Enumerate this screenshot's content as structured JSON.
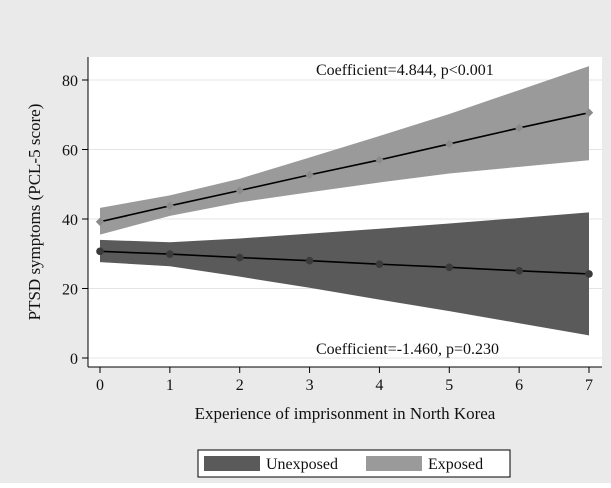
{
  "chart_data": {
    "type": "line",
    "title": "",
    "xlabel": "Experience of imprisonment in North Korea",
    "ylabel": "PTSD symptoms (PCL-5 score)",
    "xlim": [
      0,
      7
    ],
    "ylim": [
      0,
      80
    ],
    "x_ticks": [
      0,
      1,
      2,
      3,
      4,
      5,
      6,
      7
    ],
    "y_ticks": [
      0,
      20,
      40,
      60,
      80
    ],
    "grid": true,
    "legend_position": "bottom",
    "series": [
      {
        "name": "Unexposed",
        "x": [
          0,
          1,
          2,
          3,
          4,
          5,
          6,
          7
        ],
        "y": [
          30.7,
          29.9,
          28.9,
          28.0,
          27.0,
          26.1,
          25.1,
          24.2
        ],
        "ci_lower": [
          27.6,
          26.4,
          23.4,
          20.2,
          16.8,
          13.5,
          10.0,
          6.5
        ],
        "ci_upper": [
          34.0,
          33.3,
          34.4,
          35.8,
          37.2,
          38.7,
          40.3,
          41.9
        ],
        "band_color": "#5a5a5a",
        "marker_color": "#3a3a3a"
      },
      {
        "name": "Exposed",
        "x": [
          0,
          1,
          2,
          3,
          4,
          5,
          6,
          7
        ],
        "y": [
          39.2,
          43.8,
          48.2,
          52.7,
          57.0,
          61.6,
          66.2,
          70.6
        ],
        "ci_lower": [
          35.5,
          40.9,
          44.8,
          47.7,
          50.5,
          53.1,
          55.0,
          56.9
        ],
        "ci_upper": [
          43.2,
          46.8,
          51.6,
          57.7,
          63.9,
          70.2,
          77.1,
          84.0
        ],
        "band_color": "#9a9a9a",
        "marker_color": "#8a8a8a"
      }
    ],
    "annotations": [
      {
        "text": "Coefficient=4.844, p<0.001",
        "series": "Exposed"
      },
      {
        "text": "Coefficient=-1.460, p=0.230",
        "series": "Unexposed"
      }
    ],
    "colors": {
      "outer_background": "#eaeaea",
      "plot_background": "#ffffff",
      "grid": "#e4e4e4",
      "fit_line": "#000000"
    }
  }
}
